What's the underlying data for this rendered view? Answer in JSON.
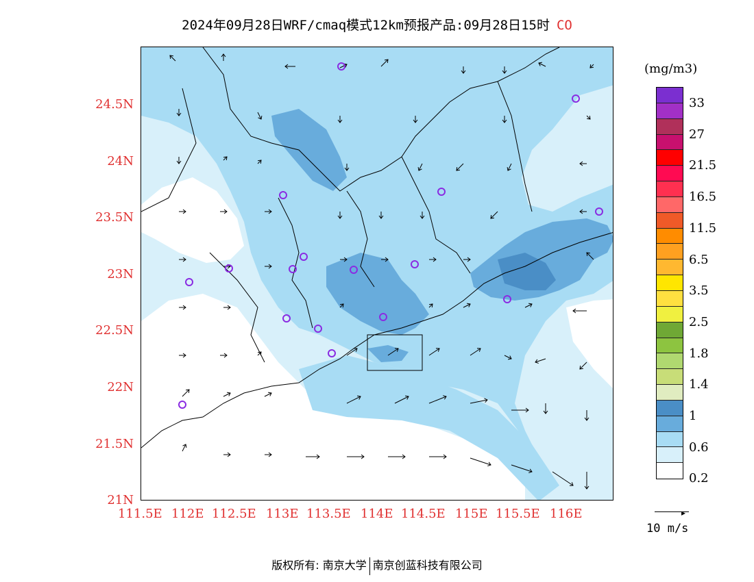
{
  "title": {
    "text": "2024年09月28日WRF/cmaq模式12km预报产品:09月28日15时",
    "pollutant": "CO"
  },
  "map": {
    "lat_labels": [
      "24.5N",
      "24N",
      "23.5N",
      "23N",
      "22.5N",
      "22N",
      "21.5N",
      "21N"
    ],
    "lon_labels": [
      "111.5E",
      "112E",
      "112.5E",
      "113E",
      "113.5E",
      "114E",
      "114.5E",
      "115E",
      "115.5E",
      "116E"
    ],
    "label_color": "#e03030",
    "station_marker_color": "#8a2be2"
  },
  "colorbar": {
    "unit": "(mg/m3)",
    "colors_top_to_bottom": [
      "#7b2fd0",
      "#a230c6",
      "#b0305a",
      "#c8106e",
      "#ff0000",
      "#ff0a52",
      "#ff3050",
      "#ff6868",
      "#f05a28",
      "#ff8c00",
      "#ffa020",
      "#ffb830",
      "#ffe600",
      "#ffe040",
      "#f0f040",
      "#6fa835",
      "#8dc440",
      "#b0d870",
      "#c8dd78",
      "#e0ecc0",
      "#4a8ec6",
      "#68acdc",
      "#a8dcf4",
      "#d8f0fa",
      "#ffffff"
    ],
    "labels": [
      "33",
      "27",
      "21.5",
      "16.5",
      "11.5",
      "6.5",
      "3.5",
      "2.5",
      "1.8",
      "1.4",
      "1",
      "0.6",
      "0.2"
    ]
  },
  "wind_key": {
    "label": "10 m/s"
  },
  "footer": {
    "left": "版权所有: 南京大学",
    "right": "南京创蓝科技有限公司"
  }
}
